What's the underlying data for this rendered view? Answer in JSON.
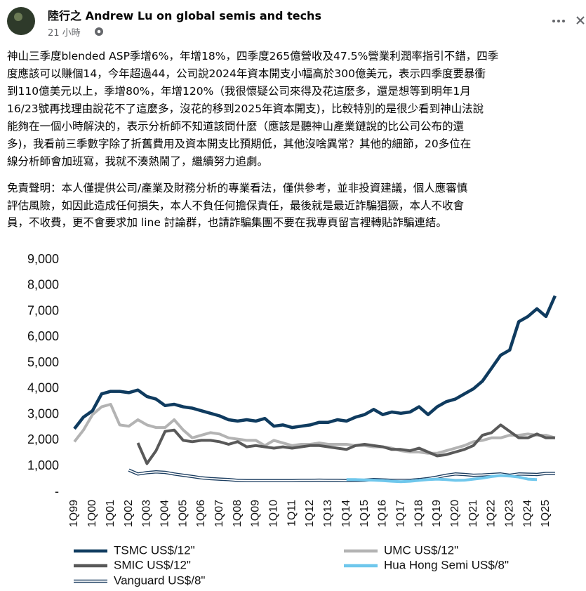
{
  "post": {
    "author": "陸行之 Andrew Lu on global semis and techs",
    "time": "21 小時",
    "paragraphs": [
      {
        "lines": [
          "神山三季度blended ASP季增6%，年增18%，四季度265億營收及47.5%營業利潤率指引不錯，四季",
          "度應該可以賺個14，今年超過44，公司說2024年資本開支小幅高於300億美元，表示四季度要暴衝",
          "到110億美元以上，季增80%，年增120%（我很懷疑公司來得及花這麼多，還是想等到明年1月",
          "16/23號再找理由說花不了這麼多，沒花的移到2025年資本開支)，比較特別的是很少看到神山法說",
          "能夠在一個小時解決的，表示分析師不知道該問什麼（應該是聽神山產業鏈說的比公司公布的還",
          "多)，我看前三季數字除了折舊費用及資本開支比預期低，其他沒啥異常？其他的細節，20多位在",
          "線分析師會加班寫，我就不湊熱鬧了，繼續努力追劇。"
        ]
      },
      {
        "lines": [
          "免責聲明：本人僅提供公司/產業及財務分析的專業看法，僅供參考，並非投資建議，個人應審慎",
          "評估風險，如因此造成任何損失，本人不負任何擔保責任，最後就是最近詐騙猖獗，本人不收會",
          "員，不收費，更不會要求加 line 討論群，也請詐騙集團不要在我專頁留言裡轉貼詐騙連結。"
        ]
      }
    ]
  },
  "chart_data": {
    "type": "line",
    "categories": [
      "1Q99",
      null,
      "1Q00",
      null,
      "1Q01",
      null,
      "1Q02",
      null,
      "1Q03",
      null,
      "1Q04",
      null,
      "1Q05",
      null,
      "1Q06",
      null,
      "1Q07",
      null,
      "1Q08",
      null,
      "1Q09",
      null,
      "1Q10",
      null,
      "1Q11",
      null,
      "1Q12",
      null,
      "1Q13",
      null,
      "1Q14",
      null,
      "1Q15",
      null,
      "1Q16",
      null,
      "1Q17",
      null,
      "1Q18",
      null,
      "1Q19",
      null,
      "1Q20",
      null,
      "1Q21",
      null,
      "1Q22",
      null,
      "1Q23",
      null,
      "1Q24",
      null,
      "1Q25",
      null
    ],
    "ylim": [
      0,
      9000
    ],
    "yticks": [
      {
        "value": 0,
        "label": "-"
      },
      {
        "value": 1000,
        "label": "1,000"
      },
      {
        "value": 2000,
        "label": "2,000"
      },
      {
        "value": 3000,
        "label": "3,000"
      },
      {
        "value": 4000,
        "label": "4,000"
      },
      {
        "value": 5000,
        "label": "5,000"
      },
      {
        "value": 6000,
        "label": "6,000"
      },
      {
        "value": 7000,
        "label": "7,000"
      },
      {
        "value": 8000,
        "label": "8,000"
      },
      {
        "value": 9000,
        "label": "9,000"
      }
    ],
    "legend": "bottom",
    "series": [
      {
        "name": "TSMC US$/12\"",
        "color": "#0f3b5f",
        "values": [
          2450,
          2900,
          3150,
          3800,
          3900,
          3900,
          3850,
          3950,
          3700,
          3600,
          3350,
          3400,
          3300,
          3250,
          3150,
          3050,
          2950,
          2800,
          2750,
          2800,
          2750,
          2850,
          2550,
          2600,
          2500,
          2550,
          2600,
          2700,
          2700,
          2800,
          2750,
          2900,
          3000,
          3200,
          3000,
          3100,
          3050,
          3100,
          3300,
          3000,
          3300,
          3500,
          3600,
          3800,
          4000,
          4300,
          4800,
          5300,
          5500,
          6600,
          6800,
          7100,
          6800,
          7600
        ]
      },
      {
        "name": "UMC US$/12\"",
        "color": "#b3b3b3",
        "values": [
          1950,
          2400,
          3000,
          3300,
          3400,
          2600,
          2550,
          2800,
          2600,
          2500,
          2500,
          2800,
          2400,
          2100,
          2200,
          2300,
          2250,
          2100,
          2050,
          2000,
          2000,
          1800,
          2000,
          1900,
          1800,
          1850,
          1850,
          1900,
          1850,
          1850,
          1850,
          1800,
          1800,
          1750,
          1750,
          1700,
          1600,
          1550,
          1550,
          1500,
          1500,
          1600,
          1700,
          1800,
          1950,
          2000,
          2100,
          2100,
          2200,
          2200,
          2250,
          2200,
          2200,
          2100
        ]
      },
      {
        "name": "SMIC US$/12\"",
        "color": "#595959",
        "values": [
          null,
          null,
          null,
          null,
          null,
          null,
          null,
          1900,
          1100,
          1600,
          2350,
          2400,
          2000,
          1950,
          2000,
          2000,
          1950,
          1850,
          1950,
          1750,
          1800,
          1750,
          1700,
          1750,
          1700,
          1750,
          1800,
          1800,
          1750,
          1700,
          1650,
          1800,
          1850,
          1800,
          1750,
          1650,
          1650,
          1600,
          1700,
          1550,
          1400,
          1450,
          1550,
          1650,
          1800,
          2200,
          2300,
          2600,
          2350,
          2100,
          2100,
          2250,
          2100,
          2100
        ]
      },
      {
        "name": "Hua Hong Semi US$/8\"",
        "color": "#6fc7ec",
        "values": [
          null,
          null,
          null,
          null,
          null,
          null,
          null,
          null,
          null,
          null,
          null,
          null,
          null,
          null,
          null,
          null,
          null,
          null,
          null,
          null,
          null,
          null,
          null,
          null,
          null,
          null,
          null,
          null,
          null,
          null,
          480,
          480,
          470,
          460,
          440,
          420,
          400,
          420,
          450,
          480,
          500,
          480,
          450,
          460,
          500,
          540,
          600,
          640,
          620,
          580,
          500,
          480,
          null,
          null
        ]
      },
      {
        "name": "Vanguard US$/8\"",
        "color": "#1b3d60",
        "style": "double",
        "values": [
          null,
          null,
          null,
          null,
          null,
          null,
          850,
          700,
          750,
          780,
          760,
          700,
          650,
          600,
          550,
          520,
          500,
          480,
          450,
          440,
          440,
          440,
          440,
          440,
          440,
          450,
          450,
          460,
          450,
          450,
          440,
          450,
          460,
          480,
          470,
          450,
          450,
          450,
          480,
          520,
          580,
          650,
          700,
          680,
          650,
          660,
          680,
          700,
          650,
          700,
          690,
          680,
          720,
          720
        ]
      }
    ]
  }
}
